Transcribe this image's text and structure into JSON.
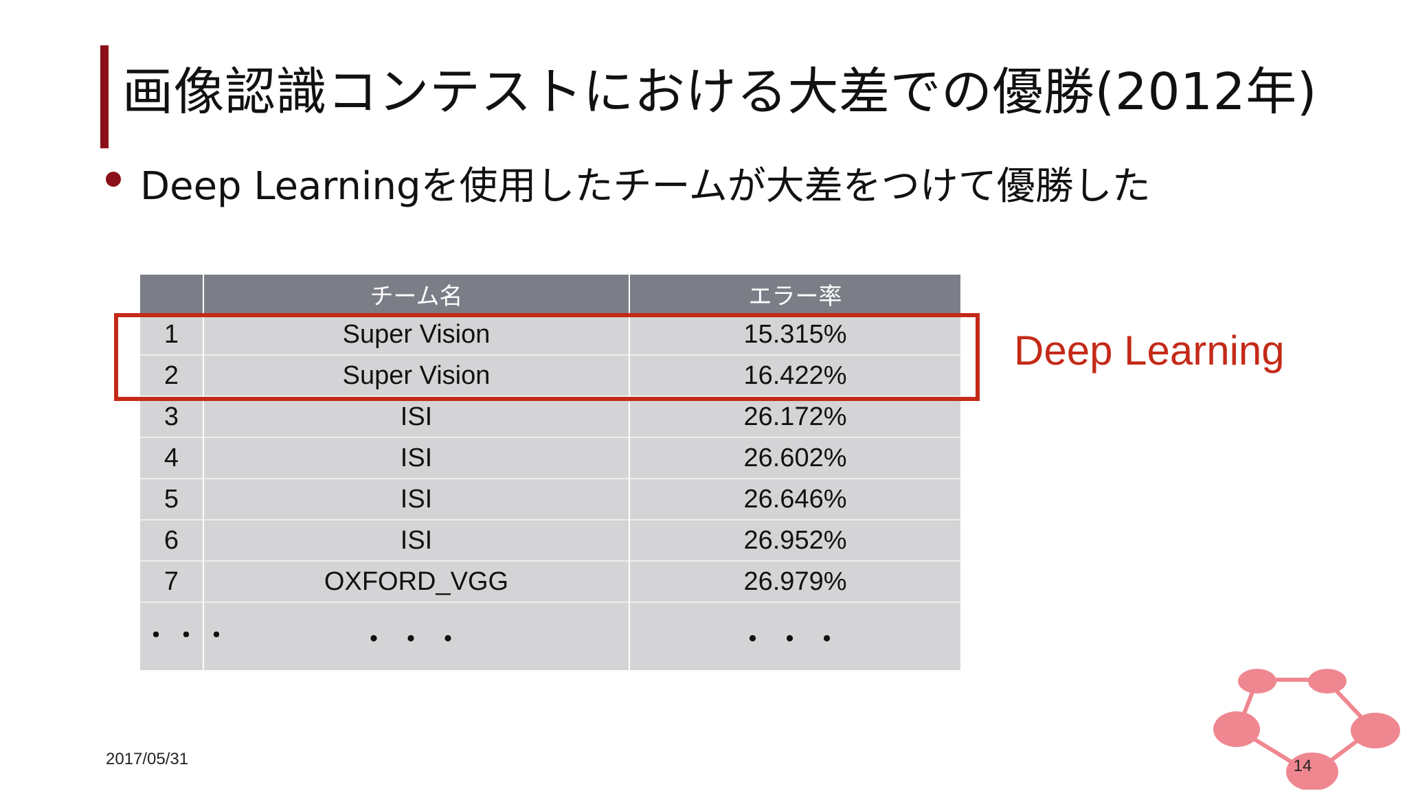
{
  "slide": {
    "title": "画像認識コンテストにおける大差での優勝(2012年)",
    "bullet": "Deep Learningを使用したチームが大差をつけて優勝した",
    "table": {
      "headers": [
        "",
        "チーム名",
        "エラー率"
      ],
      "rows": [
        {
          "rank": "1",
          "team": "Super Vision",
          "error": "15.315%"
        },
        {
          "rank": "2",
          "team": "Super Vision",
          "error": "16.422%"
        },
        {
          "rank": "3",
          "team": "ISI",
          "error": "26.172%"
        },
        {
          "rank": "4",
          "team": "ISI",
          "error": "26.602%"
        },
        {
          "rank": "5",
          "team": "ISI",
          "error": "26.646%"
        },
        {
          "rank": "6",
          "team": "ISI",
          "error": "26.952%"
        },
        {
          "rank": "7",
          "team": "OXFORD_VGG",
          "error": "26.979%"
        }
      ],
      "ellipsis": {
        "rank": "・・・",
        "team": "・・・",
        "error": "・・・"
      }
    },
    "highlight_label": "Deep Learning",
    "date": "2017/05/31",
    "page_number": "14",
    "colors": {
      "accent": "#8b0f18",
      "highlight": "#c42a18",
      "table_header": "#7b7e86",
      "table_cell": "#d4d4d6",
      "logo_node": "#ef8791"
    },
    "logo_icon": "pentagon-network-icon"
  }
}
